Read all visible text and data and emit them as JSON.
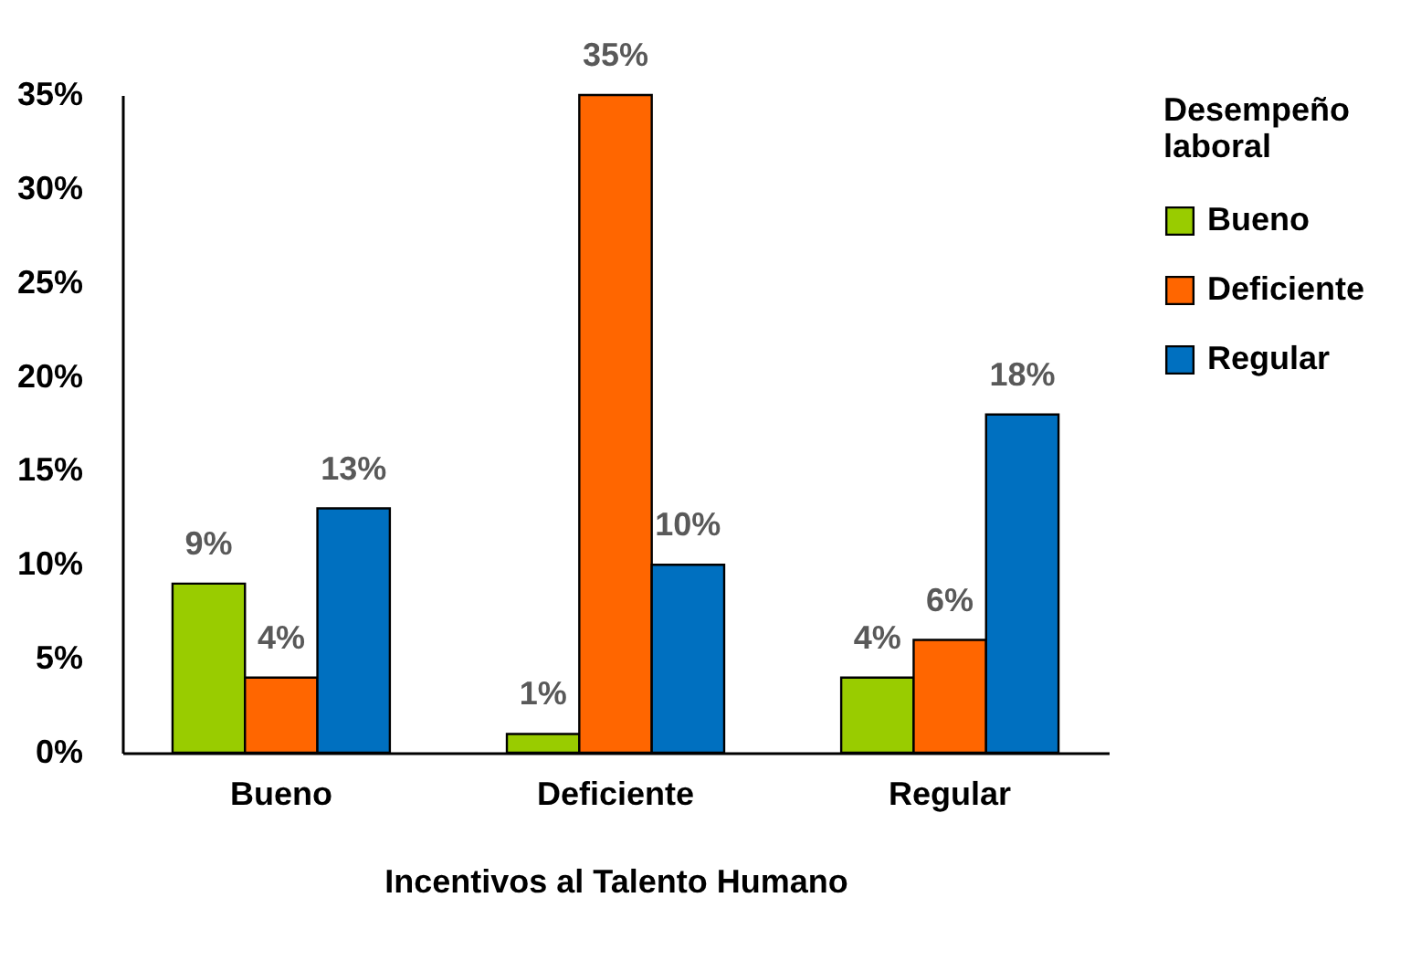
{
  "chart_data": {
    "type": "bar",
    "xlabel": "Incentivos al Talento Humano",
    "legend_title": "Desempeño laboral",
    "categories": [
      "Bueno",
      "Deficiente",
      "Regular"
    ],
    "series": [
      {
        "name": "Bueno",
        "color": "#99cc00",
        "values": [
          9,
          1,
          4
        ],
        "value_labels": [
          "9%",
          "1%",
          "4%"
        ]
      },
      {
        "name": "Deficiente",
        "color": "#ff6600",
        "values": [
          4,
          35,
          6
        ],
        "value_labels": [
          "4%",
          "35%",
          "6%"
        ]
      },
      {
        "name": "Regular",
        "color": "#0070c0",
        "values": [
          13,
          10,
          18
        ],
        "value_labels": [
          "13%",
          "10%",
          "18%"
        ]
      }
    ],
    "ylim": [
      0,
      35
    ],
    "yticks": [
      {
        "value": 0,
        "label": "0%"
      },
      {
        "value": 5,
        "label": "5%"
      },
      {
        "value": 10,
        "label": "10%"
      },
      {
        "value": 15,
        "label": "15%"
      },
      {
        "value": 20,
        "label": "20%"
      },
      {
        "value": 25,
        "label": "25%"
      },
      {
        "value": 30,
        "label": "30%"
      },
      {
        "value": 35,
        "label": "35%"
      }
    ],
    "grid": false,
    "legend": "right"
  }
}
